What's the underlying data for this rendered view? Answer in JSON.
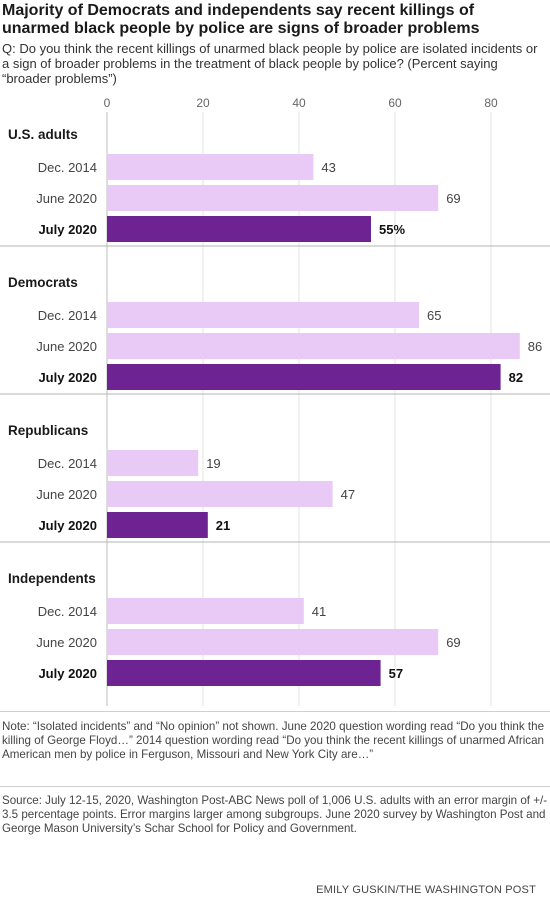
{
  "header": {
    "title": "Majority of Democrats and independents say recent killings of unarmed black people by police are signs of broader problems",
    "question": "Q: Do you think the recent killings of unarmed black people by police are isolated incidents or a sign of broader problems in the treatment of black people by police? (Percent saying “broader problems”)"
  },
  "chart_data": {
    "type": "bar",
    "orientation": "horizontal",
    "xlim": [
      0,
      86
    ],
    "xticks": [
      0,
      20,
      40,
      60,
      80
    ],
    "tick_labels": [
      "0",
      "20",
      "40",
      "60",
      "80"
    ],
    "colors": {
      "light": "#e9c9f6",
      "highlight": "#6d2392"
    },
    "groups": [
      {
        "name": "U.S. adults",
        "bars": [
          {
            "label": "Dec. 2014",
            "value": 43,
            "value_label": "43",
            "highlight": false
          },
          {
            "label": "June 2020",
            "value": 69,
            "value_label": "69",
            "highlight": false
          },
          {
            "label": "July 2020",
            "value": 55,
            "value_label": "55%",
            "highlight": true
          }
        ]
      },
      {
        "name": "Democrats",
        "bars": [
          {
            "label": "Dec. 2014",
            "value": 65,
            "value_label": "65",
            "highlight": false
          },
          {
            "label": "June 2020",
            "value": 86,
            "value_label": "86",
            "highlight": false
          },
          {
            "label": "July 2020",
            "value": 82,
            "value_label": "82",
            "highlight": true
          }
        ]
      },
      {
        "name": "Republicans",
        "bars": [
          {
            "label": "Dec. 2014",
            "value": 19,
            "value_label": "19",
            "highlight": false
          },
          {
            "label": "June 2020",
            "value": 47,
            "value_label": "47",
            "highlight": false
          },
          {
            "label": "July 2020",
            "value": 21,
            "value_label": "21",
            "highlight": true
          }
        ]
      },
      {
        "name": "Independents",
        "bars": [
          {
            "label": "Dec. 2014",
            "value": 41,
            "value_label": "41",
            "highlight": false
          },
          {
            "label": "June 2020",
            "value": 69,
            "value_label": "69",
            "highlight": false
          },
          {
            "label": "July 2020",
            "value": 57,
            "value_label": "57",
            "highlight": true
          }
        ]
      }
    ]
  },
  "footer": {
    "note": "Note: “Isolated incidents” and “No opinion” not shown. June 2020 question wording read “Do you think the killing of George Floyd…” 2014 question wording read “Do you think the recent killings of unarmed African American men by police in Ferguson, Missouri and New York City are…”",
    "source": "Source: July 12-15, 2020, Washington Post-ABC News poll of 1,006 U.S. adults with an error margin of +/- 3.5 percentage points. Error margins larger among subgroups. June 2020 survey by Washington Post and George Mason University’s Schar School for Policy and Government.",
    "credit": "EMILY GUSKIN/THE WASHINGTON POST"
  }
}
